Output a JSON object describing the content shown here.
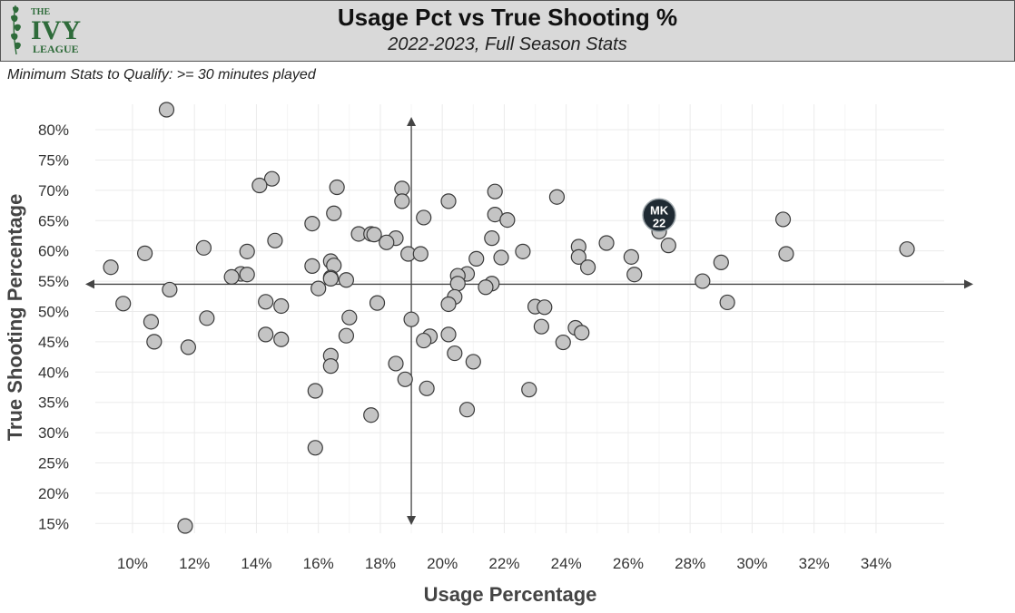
{
  "header": {
    "title": "Usage Pct vs True Shooting %",
    "subtitle": "2022-2023, Full Season Stats",
    "logo": {
      "line1": "THE",
      "line2": "IVY",
      "line3": "LEAGUE",
      "icon": "ivy-leaf-icon"
    }
  },
  "caption": "Minimum Stats to Qualify: >= 30 minutes played",
  "colors": {
    "header_bg": "#d9d9d9",
    "point_fill": "#c4c4c4",
    "point_stroke": "#3a3a3a",
    "highlight_fill": "#1f2a33",
    "logo_green": "#2e6b3a"
  },
  "chart_data": {
    "type": "scatter",
    "xlabel": "Usage Percentage",
    "ylabel": "True Shooting Percentage",
    "xlim": [
      8.8,
      36.2
    ],
    "ylim": [
      13.4,
      84.2
    ],
    "xticks": [
      10,
      12,
      14,
      16,
      18,
      20,
      22,
      24,
      26,
      28,
      30,
      32,
      34
    ],
    "xtick_labels": [
      "10%",
      "12%",
      "14%",
      "16%",
      "18%",
      "20%",
      "22%",
      "24%",
      "26%",
      "28%",
      "30%",
      "32%",
      "34%"
    ],
    "yticks": [
      15,
      20,
      25,
      30,
      35,
      40,
      45,
      50,
      55,
      60,
      65,
      70,
      75,
      80
    ],
    "ytick_labels": [
      "15%",
      "20%",
      "25%",
      "30%",
      "35%",
      "40%",
      "45%",
      "50%",
      "55%",
      "60%",
      "65%",
      "70%",
      "75%",
      "80%"
    ],
    "grid": true,
    "reference_lines": {
      "x": 19.0,
      "y": 54.5
    },
    "points": [
      {
        "x": 11.1,
        "y": 83.3
      },
      {
        "x": 14.5,
        "y": 71.9
      },
      {
        "x": 14.1,
        "y": 70.8
      },
      {
        "x": 16.6,
        "y": 70.5
      },
      {
        "x": 18.7,
        "y": 70.3
      },
      {
        "x": 21.7,
        "y": 69.8
      },
      {
        "x": 23.7,
        "y": 68.9
      },
      {
        "x": 18.7,
        "y": 68.2
      },
      {
        "x": 20.2,
        "y": 68.2
      },
      {
        "x": 16.5,
        "y": 66.2
      },
      {
        "x": 21.7,
        "y": 66.0
      },
      {
        "x": 19.4,
        "y": 65.5
      },
      {
        "x": 22.1,
        "y": 65.1
      },
      {
        "x": 31.0,
        "y": 65.2
      },
      {
        "x": 15.8,
        "y": 64.5
      },
      {
        "x": 27.0,
        "y": 63.2
      },
      {
        "x": 17.3,
        "y": 62.8
      },
      {
        "x": 17.7,
        "y": 62.8
      },
      {
        "x": 17.8,
        "y": 62.7
      },
      {
        "x": 18.5,
        "y": 62.1
      },
      {
        "x": 21.6,
        "y": 62.1
      },
      {
        "x": 14.6,
        "y": 61.7
      },
      {
        "x": 18.2,
        "y": 61.4
      },
      {
        "x": 25.3,
        "y": 61.3
      },
      {
        "x": 27.3,
        "y": 60.9
      },
      {
        "x": 24.4,
        "y": 60.7
      },
      {
        "x": 12.3,
        "y": 60.5
      },
      {
        "x": 35.0,
        "y": 60.3
      },
      {
        "x": 13.7,
        "y": 59.9
      },
      {
        "x": 22.6,
        "y": 59.9
      },
      {
        "x": 10.4,
        "y": 59.6
      },
      {
        "x": 18.9,
        "y": 59.5
      },
      {
        "x": 19.3,
        "y": 59.5
      },
      {
        "x": 31.1,
        "y": 59.5
      },
      {
        "x": 24.4,
        "y": 59.0
      },
      {
        "x": 26.1,
        "y": 59.0
      },
      {
        "x": 21.9,
        "y": 58.9
      },
      {
        "x": 21.1,
        "y": 58.7
      },
      {
        "x": 16.4,
        "y": 58.3
      },
      {
        "x": 29.0,
        "y": 58.1
      },
      {
        "x": 16.5,
        "y": 57.6
      },
      {
        "x": 15.8,
        "y": 57.5
      },
      {
        "x": 9.3,
        "y": 57.3
      },
      {
        "x": 24.7,
        "y": 57.3
      },
      {
        "x": 13.5,
        "y": 56.2
      },
      {
        "x": 13.7,
        "y": 56.1
      },
      {
        "x": 20.8,
        "y": 56.2
      },
      {
        "x": 26.2,
        "y": 56.1
      },
      {
        "x": 20.5,
        "y": 55.9
      },
      {
        "x": 13.2,
        "y": 55.7
      },
      {
        "x": 16.4,
        "y": 55.6
      },
      {
        "x": 16.4,
        "y": 55.4
      },
      {
        "x": 16.9,
        "y": 55.2
      },
      {
        "x": 28.4,
        "y": 55.0
      },
      {
        "x": 20.5,
        "y": 54.6
      },
      {
        "x": 21.6,
        "y": 54.6
      },
      {
        "x": 21.4,
        "y": 54.0
      },
      {
        "x": 16.0,
        "y": 53.8
      },
      {
        "x": 11.2,
        "y": 53.6
      },
      {
        "x": 20.4,
        "y": 52.4
      },
      {
        "x": 14.3,
        "y": 51.6
      },
      {
        "x": 17.9,
        "y": 51.4
      },
      {
        "x": 29.2,
        "y": 51.5
      },
      {
        "x": 9.7,
        "y": 51.3
      },
      {
        "x": 20.2,
        "y": 51.2
      },
      {
        "x": 14.8,
        "y": 50.9
      },
      {
        "x": 23.0,
        "y": 50.8
      },
      {
        "x": 23.3,
        "y": 50.7
      },
      {
        "x": 17.0,
        "y": 49.0
      },
      {
        "x": 12.4,
        "y": 48.9
      },
      {
        "x": 19.0,
        "y": 48.7
      },
      {
        "x": 10.6,
        "y": 48.3
      },
      {
        "x": 23.2,
        "y": 47.5
      },
      {
        "x": 24.3,
        "y": 47.3
      },
      {
        "x": 24.5,
        "y": 46.5
      },
      {
        "x": 14.3,
        "y": 46.2
      },
      {
        "x": 20.2,
        "y": 46.2
      },
      {
        "x": 16.9,
        "y": 46.0
      },
      {
        "x": 19.6,
        "y": 45.9
      },
      {
        "x": 14.8,
        "y": 45.4
      },
      {
        "x": 19.4,
        "y": 45.2
      },
      {
        "x": 10.7,
        "y": 45.0
      },
      {
        "x": 23.9,
        "y": 44.9
      },
      {
        "x": 11.8,
        "y": 44.1
      },
      {
        "x": 20.4,
        "y": 43.1
      },
      {
        "x": 16.4,
        "y": 42.7
      },
      {
        "x": 21.0,
        "y": 41.7
      },
      {
        "x": 18.5,
        "y": 41.4
      },
      {
        "x": 16.4,
        "y": 41.0
      },
      {
        "x": 18.8,
        "y": 38.8
      },
      {
        "x": 19.5,
        "y": 37.3
      },
      {
        "x": 22.8,
        "y": 37.1
      },
      {
        "x": 15.9,
        "y": 36.9
      },
      {
        "x": 20.8,
        "y": 33.8
      },
      {
        "x": 17.7,
        "y": 32.9
      },
      {
        "x": 15.9,
        "y": 27.5
      },
      {
        "x": 11.7,
        "y": 14.6
      }
    ],
    "highlight": {
      "x": 27.0,
      "y": 65.9,
      "label_line1": "MK",
      "label_line2": "22"
    }
  }
}
